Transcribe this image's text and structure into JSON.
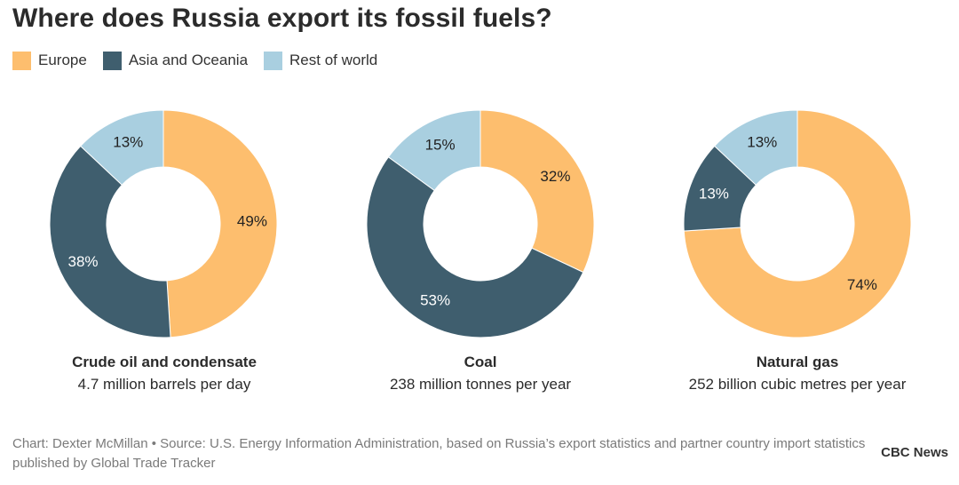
{
  "title": "Where does Russia export its fossil fuels?",
  "legend": [
    {
      "label": "Europe",
      "color": "#FDBE6E"
    },
    {
      "label": "Asia and Oceania",
      "color": "#3F5E6E"
    },
    {
      "label": "Rest of world",
      "color": "#A9CFE0"
    }
  ],
  "chart_data": [
    {
      "type": "pie",
      "title": "Crude oil and condensate",
      "subtitle": "4.7 million barrels per day",
      "categories": [
        "Europe",
        "Asia and Oceania",
        "Rest of world"
      ],
      "values": [
        49,
        38,
        13
      ],
      "labels": [
        "49%",
        "38%",
        "13%"
      ]
    },
    {
      "type": "pie",
      "title": "Coal",
      "subtitle": "238 million tonnes per year",
      "categories": [
        "Europe",
        "Asia and Oceania",
        "Rest of world"
      ],
      "values": [
        32,
        53,
        15
      ],
      "labels": [
        "32%",
        "53%",
        "15%"
      ]
    },
    {
      "type": "pie",
      "title": "Natural gas",
      "subtitle": "252 billion cubic metres per year",
      "categories": [
        "Europe",
        "Asia and Oceania",
        "Rest of world"
      ],
      "values": [
        74,
        13,
        13
      ],
      "labels": [
        "74%",
        "13%",
        "13%"
      ]
    }
  ],
  "footer": {
    "credit": "Chart: Dexter McMillan • Source: U.S. Energy Information Administration, based on Russia’s export statistics and partner country import statistics published by Global Trade Tracker",
    "brand": "CBC News"
  }
}
